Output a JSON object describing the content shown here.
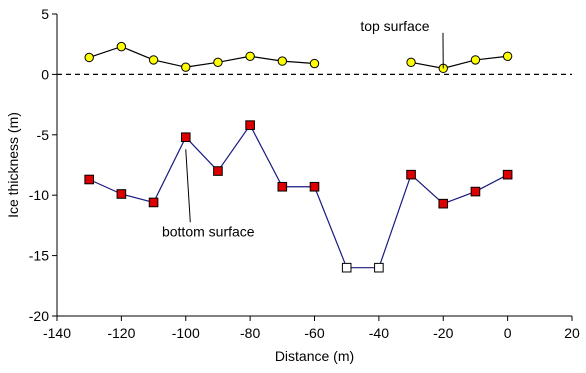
{
  "chart_data": {
    "type": "scatter",
    "title": "",
    "xlabel": "Distance (m)",
    "ylabel": "Ice thickness (m)",
    "xlim": [
      -140,
      20
    ],
    "ylim": [
      -20,
      5
    ],
    "xticks": [
      -140,
      -120,
      -100,
      -80,
      -60,
      -40,
      -20,
      0,
      20
    ],
    "yticks": [
      -20,
      -15,
      -10,
      -5,
      0,
      5
    ],
    "reference_line": {
      "y": 0,
      "style": "dashed"
    },
    "grid": false,
    "legend": "none",
    "series": [
      {
        "color": "#ffff00",
        "marker": "circle",
        "line_color": "#000000",
        "segments": [
          {
            "x": [
              -130,
              -120,
              -110,
              -100,
              -90,
              -80,
              -70,
              -60
            ],
            "y": [
              1.4,
              2.3,
              1.2,
              0.6,
              1.0,
              1.5,
              1.1,
              0.9
            ]
          },
          {
            "x": [
              -30,
              -20,
              -10,
              0
            ],
            "y": [
              1.0,
              0.5,
              1.2,
              1.5
            ]
          }
        ]
      },
      {
        "color": "#dd0000",
        "marker": "square",
        "line_color": "#1a1a80",
        "segments": [
          {
            "x": [
              -130,
              -120,
              -110,
              -100,
              -90,
              -80,
              -70,
              -60,
              -50,
              -40,
              -30,
              -20,
              -10,
              0
            ],
            "y": [
              -8.7,
              -9.9,
              -10.6,
              -5.2,
              -8.0,
              -4.2,
              -9.3,
              -9.3,
              -16.0,
              -16.0,
              -8.3,
              -10.7,
              -9.7,
              -8.3
            ]
          }
        ],
        "hollow_points_x": [
          -50,
          -40
        ]
      }
    ],
    "annotations": [
      {
        "text": "top surface",
        "x": -35,
        "y": 3.6,
        "arrow_to": [
          -20,
          0.5
        ]
      },
      {
        "text": "bottom surface",
        "x": -93,
        "y": -13.4,
        "arrow_to": [
          -100,
          -6.2
        ]
      }
    ]
  }
}
